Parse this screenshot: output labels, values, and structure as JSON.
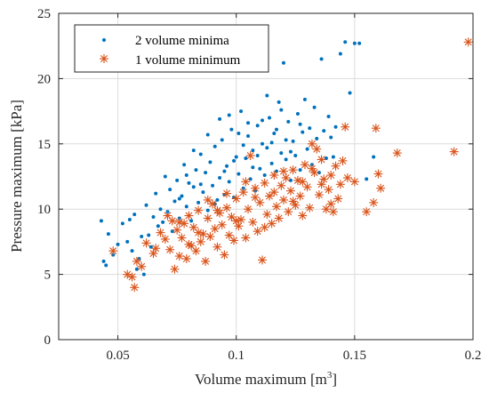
{
  "chart_data": {
    "type": "scatter",
    "xlabel": "Volume maximum [m",
    "xlabel_sup": "3",
    "xlabel_end": "]",
    "ylabel": "Pressure maximum [kPa]",
    "xlim": [
      0.025,
      0.2
    ],
    "ylim": [
      0,
      25
    ],
    "xticks": [
      0.05,
      0.1,
      0.15,
      0.2
    ],
    "xtick_labels": [
      "0.05",
      "0.1",
      "0.15",
      "0.2"
    ],
    "yticks": [
      0,
      5,
      10,
      15,
      20,
      25
    ],
    "ytick_labels": [
      "0",
      "5",
      "10",
      "15",
      "20",
      "25"
    ],
    "grid": true,
    "legend_position": "top-left",
    "series": [
      {
        "name": "2 volume minima",
        "marker": "dot",
        "color": "#0072BD",
        "points": [
          [
            0.043,
            9.1
          ],
          [
            0.044,
            6.0
          ],
          [
            0.045,
            5.7
          ],
          [
            0.046,
            8.1
          ],
          [
            0.048,
            6.5
          ],
          [
            0.05,
            7.3
          ],
          [
            0.052,
            8.9
          ],
          [
            0.054,
            7.5
          ],
          [
            0.055,
            9.2
          ],
          [
            0.056,
            6.8
          ],
          [
            0.057,
            9.6
          ],
          [
            0.058,
            5.4
          ],
          [
            0.059,
            6.2
          ],
          [
            0.06,
            7.9
          ],
          [
            0.061,
            5.0
          ],
          [
            0.062,
            10.3
          ],
          [
            0.063,
            8.0
          ],
          [
            0.064,
            7.1
          ],
          [
            0.065,
            9.4
          ],
          [
            0.066,
            11.2
          ],
          [
            0.067,
            8.7
          ],
          [
            0.068,
            10.0
          ],
          [
            0.069,
            9.0
          ],
          [
            0.07,
            12.5
          ],
          [
            0.071,
            9.8
          ],
          [
            0.072,
            11.5
          ],
          [
            0.073,
            8.3
          ],
          [
            0.074,
            10.6
          ],
          [
            0.075,
            12.2
          ],
          [
            0.076,
            9.3
          ],
          [
            0.077,
            11.0
          ],
          [
            0.078,
            13.4
          ],
          [
            0.079,
            10.2
          ],
          [
            0.08,
            12.0
          ],
          [
            0.081,
            9.1
          ],
          [
            0.082,
            11.7
          ],
          [
            0.083,
            13.0
          ],
          [
            0.084,
            10.5
          ],
          [
            0.085,
            14.2
          ],
          [
            0.086,
            11.3
          ],
          [
            0.087,
            12.8
          ],
          [
            0.088,
            9.9
          ],
          [
            0.089,
            13.6
          ],
          [
            0.09,
            11.8
          ],
          [
            0.091,
            14.8
          ],
          [
            0.092,
            10.7
          ],
          [
            0.093,
            12.4
          ],
          [
            0.094,
            15.3
          ],
          [
            0.095,
            11.1
          ],
          [
            0.096,
            13.3
          ],
          [
            0.097,
            12.1
          ],
          [
            0.098,
            16.1
          ],
          [
            0.099,
            10.9
          ],
          [
            0.1,
            14.0
          ],
          [
            0.101,
            12.7
          ],
          [
            0.102,
            17.5
          ],
          [
            0.103,
            11.6
          ],
          [
            0.104,
            13.9
          ],
          [
            0.105,
            15.6
          ],
          [
            0.106,
            12.3
          ],
          [
            0.107,
            14.5
          ],
          [
            0.108,
            11.4
          ],
          [
            0.109,
            16.4
          ],
          [
            0.11,
            13.1
          ],
          [
            0.111,
            15.0
          ],
          [
            0.112,
            12.6
          ],
          [
            0.113,
            14.7
          ],
          [
            0.114,
            17.0
          ],
          [
            0.115,
            13.5
          ],
          [
            0.116,
            15.8
          ],
          [
            0.117,
            12.9
          ],
          [
            0.118,
            18.2
          ],
          [
            0.119,
            14.3
          ],
          [
            0.12,
            21.2
          ],
          [
            0.121,
            13.8
          ],
          [
            0.122,
            16.7
          ],
          [
            0.123,
            12.2
          ],
          [
            0.124,
            15.2
          ],
          [
            0.125,
            14.1
          ],
          [
            0.126,
            17.3
          ],
          [
            0.127,
            13.0
          ],
          [
            0.128,
            15.9
          ],
          [
            0.129,
            18.4
          ],
          [
            0.13,
            14.6
          ],
          [
            0.131,
            16.2
          ],
          [
            0.132,
            13.4
          ],
          [
            0.133,
            17.8
          ],
          [
            0.134,
            15.4
          ],
          [
            0.135,
            12.8
          ],
          [
            0.136,
            21.5
          ],
          [
            0.137,
            16.0
          ],
          [
            0.138,
            13.9
          ],
          [
            0.139,
            17.1
          ],
          [
            0.14,
            15.5
          ],
          [
            0.141,
            14.0
          ],
          [
            0.142,
            16.3
          ],
          [
            0.144,
            21.9
          ],
          [
            0.146,
            22.8
          ],
          [
            0.148,
            18.9
          ],
          [
            0.15,
            22.7
          ],
          [
            0.152,
            22.7
          ],
          [
            0.155,
            12.3
          ],
          [
            0.158,
            14.0
          ],
          [
            0.091,
            10.4
          ],
          [
            0.095,
            12.9
          ],
          [
            0.099,
            13.7
          ],
          [
            0.103,
            14.9
          ],
          [
            0.107,
            13.2
          ],
          [
            0.111,
            16.8
          ],
          [
            0.115,
            15.1
          ],
          [
            0.119,
            17.6
          ],
          [
            0.123,
            14.4
          ],
          [
            0.127,
            16.5
          ],
          [
            0.085,
            11.9
          ],
          [
            0.079,
            12.6
          ],
          [
            0.076,
            10.8
          ],
          [
            0.082,
            14.5
          ],
          [
            0.088,
            15.7
          ],
          [
            0.093,
            16.9
          ],
          [
            0.097,
            17.2
          ],
          [
            0.101,
            15.8
          ],
          [
            0.105,
            16.6
          ],
          [
            0.109,
            14.1
          ],
          [
            0.113,
            18.7
          ],
          [
            0.117,
            16.1
          ],
          [
            0.121,
            15.3
          ]
        ]
      },
      {
        "name": "1 volume minimum",
        "marker": "asterisk",
        "color": "#D95319",
        "points": [
          [
            0.048,
            6.8
          ],
          [
            0.054,
            5.0
          ],
          [
            0.056,
            4.8
          ],
          [
            0.057,
            4.0
          ],
          [
            0.058,
            6.0
          ],
          [
            0.06,
            5.6
          ],
          [
            0.062,
            7.4
          ],
          [
            0.065,
            6.6
          ],
          [
            0.066,
            7.0
          ],
          [
            0.068,
            8.2
          ],
          [
            0.07,
            7.7
          ],
          [
            0.072,
            6.9
          ],
          [
            0.073,
            9.1
          ],
          [
            0.074,
            5.4
          ],
          [
            0.075,
            8.4
          ],
          [
            0.076,
            6.4
          ],
          [
            0.077,
            7.8
          ],
          [
            0.078,
            8.9
          ],
          [
            0.079,
            6.2
          ],
          [
            0.08,
            9.5
          ],
          [
            0.081,
            7.2
          ],
          [
            0.082,
            8.6
          ],
          [
            0.083,
            6.8
          ],
          [
            0.084,
            9.9
          ],
          [
            0.085,
            7.5
          ],
          [
            0.086,
            8.1
          ],
          [
            0.087,
            6.0
          ],
          [
            0.088,
            9.3
          ],
          [
            0.089,
            7.9
          ],
          [
            0.09,
            10.4
          ],
          [
            0.091,
            8.5
          ],
          [
            0.092,
            7.1
          ],
          [
            0.093,
            9.7
          ],
          [
            0.094,
            8.8
          ],
          [
            0.095,
            6.5
          ],
          [
            0.096,
            10.1
          ],
          [
            0.097,
            8.0
          ],
          [
            0.098,
            9.4
          ],
          [
            0.099,
            7.6
          ],
          [
            0.1,
            10.8
          ],
          [
            0.101,
            8.7
          ],
          [
            0.102,
            9.2
          ],
          [
            0.103,
            11.3
          ],
          [
            0.104,
            7.8
          ],
          [
            0.105,
            10.0
          ],
          [
            0.106,
            14.1
          ],
          [
            0.107,
            9.0
          ],
          [
            0.108,
            11.6
          ],
          [
            0.109,
            8.3
          ],
          [
            0.11,
            10.5
          ],
          [
            0.111,
            6.1
          ],
          [
            0.112,
            12.0
          ],
          [
            0.113,
            9.6
          ],
          [
            0.114,
            11.0
          ],
          [
            0.115,
            8.9
          ],
          [
            0.116,
            12.6
          ],
          [
            0.117,
            10.2
          ],
          [
            0.118,
            9.3
          ],
          [
            0.119,
            11.8
          ],
          [
            0.12,
            10.7
          ],
          [
            0.121,
            12.4
          ],
          [
            0.122,
            9.8
          ],
          [
            0.123,
            11.4
          ],
          [
            0.124,
            13.0
          ],
          [
            0.125,
            10.3
          ],
          [
            0.126,
            12.2
          ],
          [
            0.127,
            11.0
          ],
          [
            0.128,
            9.5
          ],
          [
            0.129,
            13.4
          ],
          [
            0.13,
            11.7
          ],
          [
            0.131,
            10.1
          ],
          [
            0.132,
            15.0
          ],
          [
            0.133,
            12.8
          ],
          [
            0.134,
            14.6
          ],
          [
            0.135,
            11.1
          ],
          [
            0.136,
            13.8
          ],
          [
            0.137,
            12.3
          ],
          [
            0.138,
            10.0
          ],
          [
            0.139,
            11.5
          ],
          [
            0.14,
            10.4
          ],
          [
            0.141,
            9.8
          ],
          [
            0.142,
            13.3
          ],
          [
            0.143,
            10.8
          ],
          [
            0.144,
            11.9
          ],
          [
            0.145,
            13.7
          ],
          [
            0.146,
            16.3
          ],
          [
            0.147,
            12.4
          ],
          [
            0.15,
            12.1
          ],
          [
            0.155,
            9.8
          ],
          [
            0.158,
            10.5
          ],
          [
            0.159,
            16.2
          ],
          [
            0.16,
            12.7
          ],
          [
            0.161,
            11.6
          ],
          [
            0.168,
            14.3
          ],
          [
            0.192,
            14.4
          ],
          [
            0.198,
            22.8
          ],
          [
            0.071,
            9.5
          ],
          [
            0.076,
            9.0
          ],
          [
            0.08,
            7.3
          ],
          [
            0.084,
            8.2
          ],
          [
            0.088,
            10.7
          ],
          [
            0.092,
            9.9
          ],
          [
            0.096,
            11.2
          ],
          [
            0.1,
            9.1
          ],
          [
            0.104,
            12.1
          ],
          [
            0.108,
            10.9
          ],
          [
            0.112,
            8.6
          ],
          [
            0.116,
            11.3
          ],
          [
            0.12,
            12.9
          ],
          [
            0.124,
            10.6
          ],
          [
            0.128,
            12.1
          ],
          [
            0.132,
            13.1
          ],
          [
            0.136,
            11.9
          ],
          [
            0.14,
            12.6
          ]
        ]
      }
    ]
  }
}
